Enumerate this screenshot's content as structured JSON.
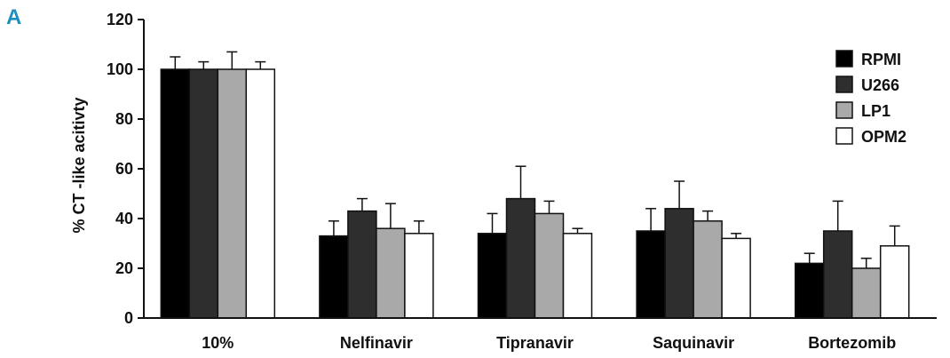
{
  "panel_label": "A",
  "chart_data": {
    "type": "bar",
    "title": "",
    "xlabel": "",
    "ylabel": "% CT -like acitivty",
    "ylim": [
      0,
      120
    ],
    "yticks": [
      0,
      20,
      40,
      60,
      80,
      100,
      120
    ],
    "categories": [
      "10%",
      "Nelfinavir",
      "Tipranavir",
      "Saquinavir",
      "Bortezomib"
    ],
    "series": [
      {
        "name": "RPMI",
        "color": "#000000",
        "values": [
          100,
          33,
          34,
          35,
          22
        ],
        "errors": [
          5,
          6,
          8,
          9,
          4
        ]
      },
      {
        "name": "U266",
        "color": "#2e2e2e",
        "values": [
          100,
          43,
          48,
          44,
          35
        ],
        "errors": [
          3,
          5,
          13,
          11,
          12
        ]
      },
      {
        "name": "LP1",
        "color": "#a9a9a9",
        "values": [
          100,
          36,
          42,
          39,
          20
        ],
        "errors": [
          7,
          10,
          5,
          4,
          4
        ]
      },
      {
        "name": "OPM2",
        "color": "#ffffff",
        "values": [
          100,
          34,
          34,
          32,
          29
        ],
        "errors": [
          3,
          5,
          2,
          2,
          8
        ]
      }
    ],
    "legend_position": "top-right",
    "grid": false
  }
}
